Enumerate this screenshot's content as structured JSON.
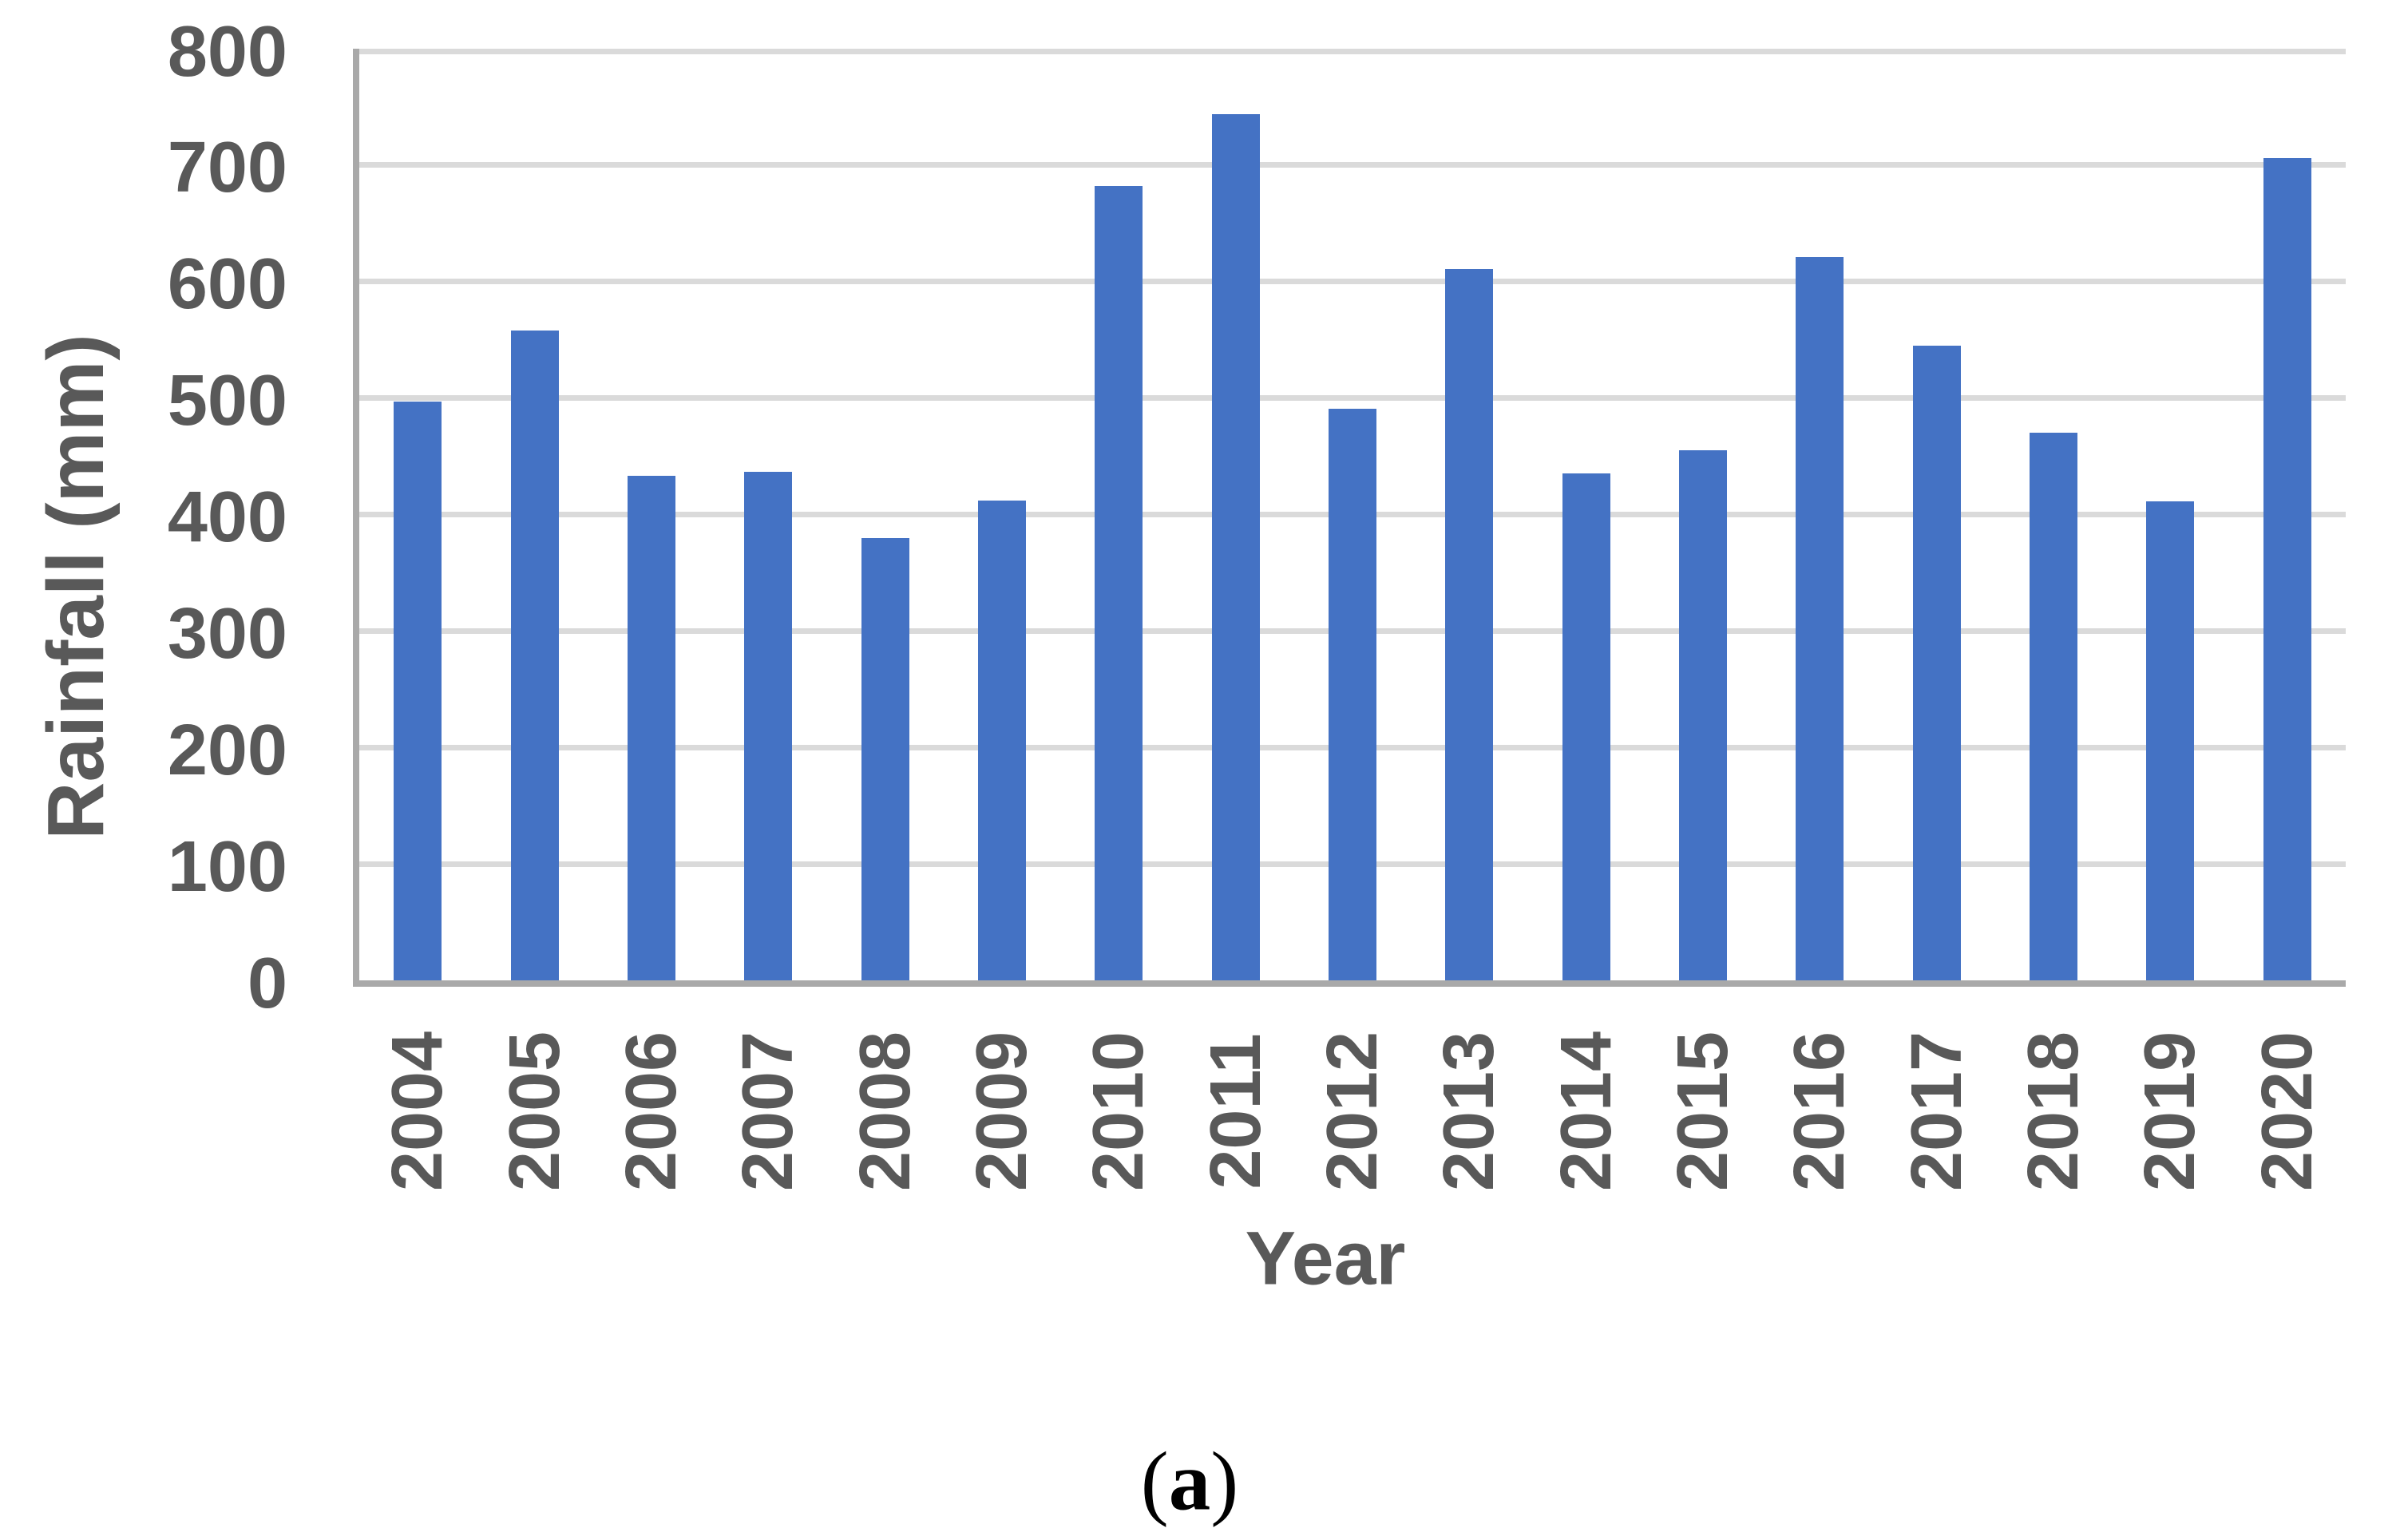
{
  "chart_data": {
    "type": "bar",
    "title": "",
    "categories": [
      "2004",
      "2005",
      "2006",
      "2007",
      "2008",
      "2009",
      "2010",
      "2011",
      "2012",
      "2013",
      "2014",
      "2015",
      "2016",
      "2017",
      "2018",
      "2019",
      "2020"
    ],
    "values": [
      497,
      558,
      433,
      437,
      380,
      412,
      682,
      744,
      491,
      611,
      435,
      455,
      621,
      545,
      470,
      411,
      706
    ],
    "xlabel": "Year",
    "ylabel": "Rainfall (mm)",
    "ylim": [
      0,
      800
    ],
    "yticks": [
      800,
      700,
      600,
      500,
      400,
      300,
      200,
      100,
      0
    ],
    "grid": "horizontal-gridlines",
    "legend": "none",
    "colors": {
      "bar": "#4472C4",
      "gridline": "#DADADA",
      "axis_line": "#A9A9A9",
      "label": "#595959"
    }
  },
  "caption": {
    "open": "(",
    "letter": "a",
    "close": ")"
  }
}
